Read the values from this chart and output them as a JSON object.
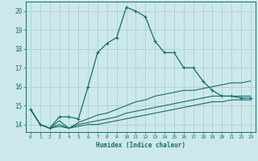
{
  "xlabel": "Humidex (Indice chaleur)",
  "ylabel": "",
  "bg_color": "#cce8eb",
  "grid_color": "#aacccc",
  "line_color": "#1a6b6b",
  "xlim": [
    -0.5,
    23.5
  ],
  "ylim": [
    13.6,
    20.5
  ],
  "xticks": [
    0,
    1,
    2,
    3,
    4,
    5,
    6,
    7,
    8,
    9,
    10,
    11,
    12,
    13,
    14,
    15,
    16,
    17,
    18,
    19,
    20,
    21,
    22,
    23
  ],
  "yticks": [
    14,
    15,
    16,
    17,
    18,
    19,
    20
  ],
  "series1_x": [
    0,
    1,
    2,
    3,
    4,
    5,
    6,
    7,
    8,
    9,
    10,
    11,
    12,
    13,
    14,
    15,
    16,
    17,
    18,
    19,
    20,
    21,
    22,
    23
  ],
  "series1_y": [
    14.8,
    14.0,
    13.8,
    14.4,
    14.4,
    14.3,
    16.0,
    17.8,
    18.3,
    18.6,
    20.2,
    20.0,
    19.7,
    18.4,
    17.8,
    17.8,
    17.0,
    17.0,
    16.3,
    15.8,
    15.5,
    15.5,
    15.4,
    15.4
  ],
  "series2_x": [
    0,
    1,
    2,
    3,
    4,
    5,
    6,
    7,
    8,
    9,
    10,
    11,
    12,
    13,
    14,
    15,
    16,
    17,
    18,
    19,
    20,
    21,
    22,
    23
  ],
  "series2_y": [
    14.8,
    14.0,
    13.8,
    14.2,
    13.8,
    14.1,
    14.3,
    14.5,
    14.6,
    14.8,
    15.0,
    15.2,
    15.3,
    15.5,
    15.6,
    15.7,
    15.8,
    15.8,
    15.9,
    16.0,
    16.1,
    16.2,
    16.2,
    16.3
  ],
  "series3_x": [
    0,
    1,
    2,
    3,
    4,
    5,
    6,
    7,
    8,
    9,
    10,
    11,
    12,
    13,
    14,
    15,
    16,
    17,
    18,
    19,
    20,
    21,
    22,
    23
  ],
  "series3_y": [
    14.8,
    14.0,
    13.8,
    14.0,
    13.8,
    14.0,
    14.1,
    14.2,
    14.3,
    14.4,
    14.6,
    14.7,
    14.8,
    14.9,
    15.0,
    15.1,
    15.2,
    15.3,
    15.4,
    15.5,
    15.5,
    15.5,
    15.5,
    15.5
  ],
  "series4_x": [
    0,
    1,
    2,
    3,
    4,
    5,
    6,
    7,
    8,
    9,
    10,
    11,
    12,
    13,
    14,
    15,
    16,
    17,
    18,
    19,
    20,
    21,
    22,
    23
  ],
  "series4_y": [
    14.8,
    14.0,
    13.8,
    13.9,
    13.8,
    13.9,
    14.0,
    14.0,
    14.1,
    14.2,
    14.3,
    14.4,
    14.5,
    14.6,
    14.7,
    14.8,
    14.9,
    15.0,
    15.1,
    15.2,
    15.2,
    15.3,
    15.3,
    15.3
  ]
}
